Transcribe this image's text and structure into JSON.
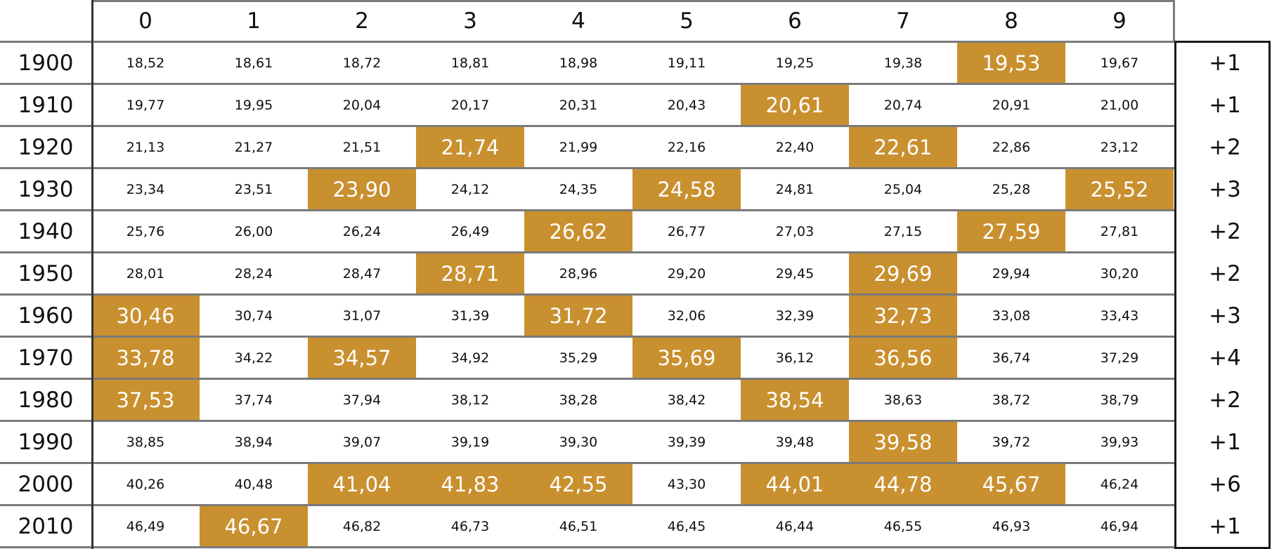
{
  "chart_data": {
    "type": "table",
    "columns": [
      "0",
      "1",
      "2",
      "3",
      "4",
      "5",
      "6",
      "7",
      "8",
      "9"
    ],
    "rows": [
      {
        "label": "1900",
        "values": [
          "18,52",
          "18,61",
          "18,72",
          "18,81",
          "18,98",
          "19,11",
          "19,25",
          "19,38",
          "19,53",
          "19,67"
        ],
        "highlighted": [
          8
        ],
        "count": "+1"
      },
      {
        "label": "1910",
        "values": [
          "19,77",
          "19,95",
          "20,04",
          "20,17",
          "20,31",
          "20,43",
          "20,61",
          "20,74",
          "20,91",
          "21,00"
        ],
        "highlighted": [
          6
        ],
        "count": "+1"
      },
      {
        "label": "1920",
        "values": [
          "21,13",
          "21,27",
          "21,51",
          "21,74",
          "21,99",
          "22,16",
          "22,40",
          "22,61",
          "22,86",
          "23,12"
        ],
        "highlighted": [
          3,
          7
        ],
        "count": "+2"
      },
      {
        "label": "1930",
        "values": [
          "23,34",
          "23,51",
          "23,90",
          "24,12",
          "24,35",
          "24,58",
          "24,81",
          "25,04",
          "25,28",
          "25,52"
        ],
        "highlighted": [
          2,
          5,
          9
        ],
        "count": "+3"
      },
      {
        "label": "1940",
        "values": [
          "25,76",
          "26,00",
          "26,24",
          "26,49",
          "26,62",
          "26,77",
          "27,03",
          "27,15",
          "27,59",
          "27,81"
        ],
        "highlighted": [
          4,
          8
        ],
        "count": "+2"
      },
      {
        "label": "1950",
        "values": [
          "28,01",
          "28,24",
          "28,47",
          "28,71",
          "28,96",
          "29,20",
          "29,45",
          "29,69",
          "29,94",
          "30,20"
        ],
        "highlighted": [
          3,
          7
        ],
        "count": "+2"
      },
      {
        "label": "1960",
        "values": [
          "30,46",
          "30,74",
          "31,07",
          "31,39",
          "31,72",
          "32,06",
          "32,39",
          "32,73",
          "33,08",
          "33,43"
        ],
        "highlighted": [
          0,
          4,
          7
        ],
        "count": "+3"
      },
      {
        "label": "1970",
        "values": [
          "33,78",
          "34,22",
          "34,57",
          "34,92",
          "35,29",
          "35,69",
          "36,12",
          "36,56",
          "36,74",
          "37,29"
        ],
        "highlighted": [
          0,
          2,
          5,
          7
        ],
        "count": "+4"
      },
      {
        "label": "1980",
        "values": [
          "37,53",
          "37,74",
          "37,94",
          "38,12",
          "38,28",
          "38,42",
          "38,54",
          "38,63",
          "38,72",
          "38,79"
        ],
        "highlighted": [
          0,
          6
        ],
        "count": "+2"
      },
      {
        "label": "1990",
        "values": [
          "38,85",
          "38,94",
          "39,07",
          "39,19",
          "39,30",
          "39,39",
          "39,48",
          "39,58",
          "39,72",
          "39,93"
        ],
        "highlighted": [
          7
        ],
        "count": "+1"
      },
      {
        "label": "2000",
        "values": [
          "40,26",
          "40,48",
          "41,04",
          "41,83",
          "42,55",
          "43,30",
          "44,01",
          "44,78",
          "45,67",
          "46,24"
        ],
        "highlighted": [
          2,
          3,
          4,
          6,
          7,
          8
        ],
        "count": "+6"
      },
      {
        "label": "2010",
        "values": [
          "46,49",
          "46,67",
          "46,82",
          "46,73",
          "46,51",
          "46,45",
          "46,44",
          "46,55",
          "46,93",
          "46,94"
        ],
        "highlighted": [
          1
        ],
        "count": "+1"
      }
    ],
    "colors": {
      "highlight": "#c9902f",
      "grid": "#7a7a7a",
      "text": "#111111",
      "highlight_text": "#ffffff"
    }
  }
}
